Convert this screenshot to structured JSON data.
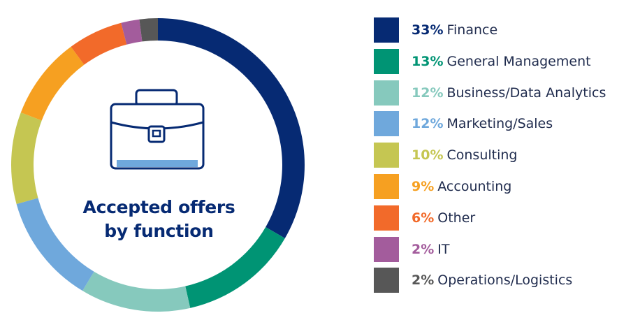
{
  "chart_data": {
    "type": "pie",
    "title": "Accepted offers by function",
    "title_lines": [
      "Accepted offers",
      "by function"
    ],
    "unit": "%",
    "slices": [
      {
        "label": "Finance",
        "value": 33,
        "display": "33%",
        "color": "#062a73"
      },
      {
        "label": "General Management",
        "value": 13,
        "display": "13%",
        "color": "#009474"
      },
      {
        "label": "Business/Data Analytics",
        "value": 12,
        "display": "12%",
        "color": "#86c9bd"
      },
      {
        "label": "Marketing/Sales",
        "value": 12,
        "display": "12%",
        "color": "#6fa8dc"
      },
      {
        "label": "Consulting",
        "value": 10,
        "display": "10%",
        "color": "#c5c652"
      },
      {
        "label": "Accounting",
        "value": 9,
        "display": "9%",
        "color": "#f6a021"
      },
      {
        "label": "Other",
        "value": 6,
        "display": "6%",
        "color": "#f26a2a"
      },
      {
        "label": "IT",
        "value": 2,
        "display": "2%",
        "color": "#a35c9c"
      },
      {
        "label": "Operations/Logistics",
        "value": 2,
        "display": "2%",
        "color": "#575757"
      }
    ],
    "legend_placement": "right"
  },
  "center_icon": "briefcase-icon",
  "colors": {
    "title_text": "#062a73",
    "label_text": "#1f2b4d",
    "icon_stroke": "#062a73",
    "icon_fill": "#6fa8dc"
  }
}
